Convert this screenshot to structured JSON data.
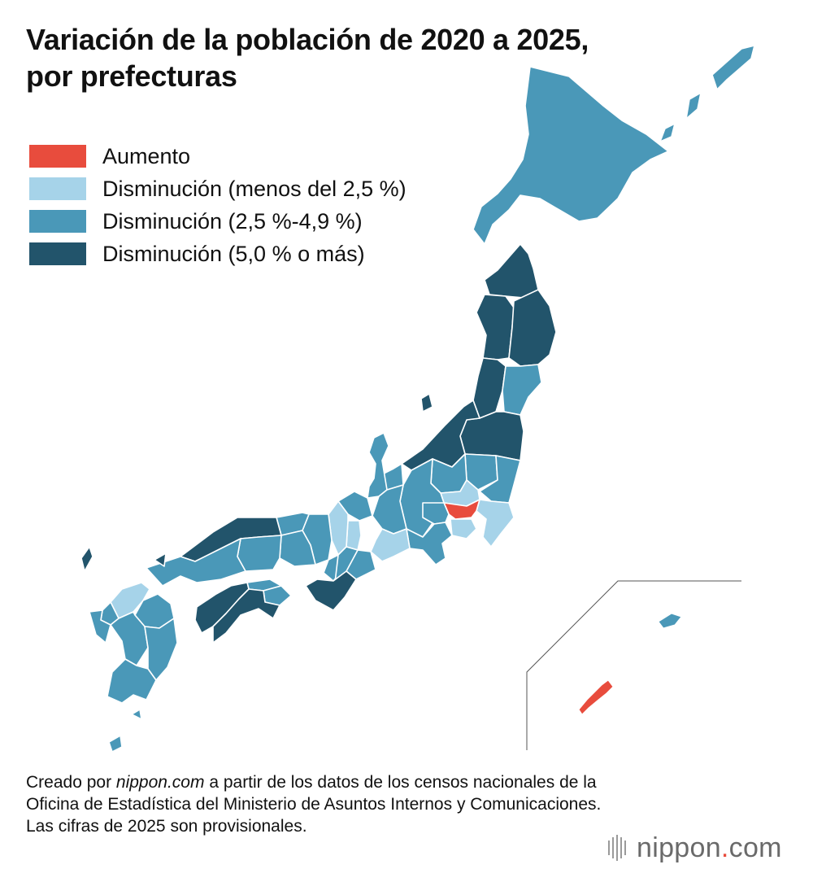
{
  "title": {
    "line1": "Variación de la población de 2020 a 2025,",
    "line2": "por prefecturas"
  },
  "legend": [
    {
      "label": "Aumento",
      "color": "#e84c3d"
    },
    {
      "label": "Disminución (menos del 2,5 %)",
      "color": "#a6d3e9"
    },
    {
      "label": "Disminución (2,5 %-4,9 %)",
      "color": "#4a98b8"
    },
    {
      "label": "Disminución (5,0 % o más)",
      "color": "#22546b"
    }
  ],
  "colors": {
    "increase": "#e84c3d",
    "decrease_light": "#a6d3e9",
    "decrease_mid": "#4a98b8",
    "decrease_dark": "#22546b",
    "inset_border": "#555555"
  },
  "source": {
    "prefix": "Creado por ",
    "site": "nippon.com",
    "rest": " a partir de los datos de los censos nacionales de la Oficina de Estadística del Ministerio de Asuntos Internos y Comunicaciones. Las cifras de 2025 son provisionales."
  },
  "logo": {
    "name": "nippon",
    "dot": ".",
    "tld": "com"
  }
}
